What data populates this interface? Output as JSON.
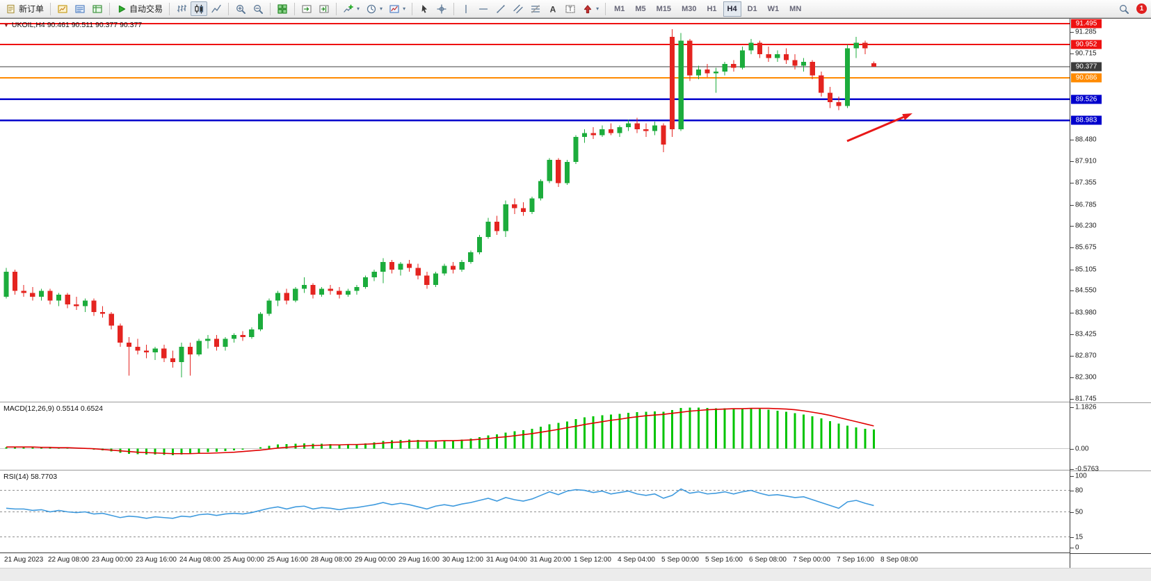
{
  "toolbar": {
    "groups": [
      [
        {
          "name": "new-order",
          "icon": "new-order",
          "label": "新订单"
        }
      ],
      [
        {
          "name": "market-watch",
          "icon": "market-watch"
        },
        {
          "name": "data-window",
          "icon": "data-window"
        },
        {
          "name": "navigator",
          "icon": "navigator"
        }
      ],
      [
        {
          "name": "auto-trading",
          "icon": "auto-trading",
          "label": "自动交易"
        }
      ],
      [
        {
          "name": "bar-chart-mode",
          "icon": "bars"
        },
        {
          "name": "candlestick-mode",
          "icon": "candles",
          "active": true
        },
        {
          "name": "line-chart-mode",
          "icon": "polyline"
        }
      ],
      [
        {
          "name": "zoom-in",
          "icon": "zoom-in"
        },
        {
          "name": "zoom-out",
          "icon": "zoom-out"
        }
      ],
      [
        {
          "name": "tile-windows",
          "icon": "grid"
        }
      ],
      [
        {
          "name": "auto-scroll",
          "icon": "auto-scroll"
        },
        {
          "name": "chart-shift",
          "icon": "chart-shift"
        }
      ],
      [
        {
          "name": "indicators-list",
          "icon": "indicator-plus",
          "caret": true
        },
        {
          "name": "periods",
          "icon": "clock",
          "caret": true
        },
        {
          "name": "templates",
          "icon": "template",
          "caret": true
        }
      ],
      [
        {
          "name": "cursor",
          "icon": "cursor"
        },
        {
          "name": "crosshair",
          "icon": "crosshair"
        }
      ],
      [
        {
          "name": "vertical-line",
          "icon": "vline"
        },
        {
          "name": "horizontal-line",
          "icon": "hline"
        },
        {
          "name": "trendline",
          "icon": "tline"
        },
        {
          "name": "channel",
          "icon": "channel"
        },
        {
          "name": "fibonacci",
          "icon": "fibo"
        },
        {
          "name": "text",
          "icon": "letterA"
        },
        {
          "name": "text-label",
          "icon": "labelT"
        },
        {
          "name": "arrow-objects",
          "icon": "arrows",
          "caret": true
        }
      ]
    ],
    "timeframes": [
      "M1",
      "M5",
      "M15",
      "M30",
      "H1",
      "H4",
      "D1",
      "W1",
      "MN"
    ],
    "active_timeframe": "H4",
    "notification_count": "1"
  },
  "chart": {
    "symbol_info": "UKOIL,H4  90.461 90.511 90.377 90.377"
  },
  "indicators": {
    "macd_label": "MACD(12,26,9) 0.5514 0.6524",
    "rsi_label": "RSI(14) 58.7703"
  },
  "price_scale": {
    "regular": [
      "91.285",
      "90.715",
      "88.480",
      "87.910",
      "87.355",
      "86.785",
      "86.230",
      "85.675",
      "85.105",
      "84.550",
      "83.980",
      "83.425",
      "82.870",
      "82.300",
      "81.745"
    ],
    "line_labels": [
      {
        "text": "91.495",
        "bg": "#ee1111"
      },
      {
        "text": "90.952",
        "bg": "#ee1111"
      },
      {
        "text": "90.377",
        "bg": "#3c3c3c"
      },
      {
        "text": "90.086",
        "bg": "#ff8a00"
      },
      {
        "text": "89.526",
        "bg": "#0000cc"
      },
      {
        "text": "88.983",
        "bg": "#0000cc"
      }
    ],
    "macd_scale": [
      "1.1826",
      "0.00",
      "-0.5763"
    ],
    "rsi_scale": [
      "100",
      "80",
      "50",
      "15",
      "0"
    ]
  },
  "chart_data": [
    {
      "type": "candlestick",
      "symbol": "UKOIL",
      "timeframe": "H4",
      "ylim": [
        81.651,
        91.621
      ],
      "up_color": "#1cac3c",
      "down_color": "#e42420",
      "hlines": [
        {
          "price": 91.495,
          "color": "#ee1111",
          "width": 2
        },
        {
          "price": 90.952,
          "color": "#ee1111",
          "width": 2
        },
        {
          "price": 90.377,
          "color": "#3c3c3c",
          "width": 1
        },
        {
          "price": 90.086,
          "color": "#ff8a00",
          "width": 2
        },
        {
          "price": 89.526,
          "color": "#0000cc",
          "width": 2.5
        },
        {
          "price": 88.983,
          "color": "#0000cc",
          "width": 2.5
        }
      ],
      "arrow": {
        "from": [
          1218,
          176
        ],
        "to": [
          1312,
          136
        ],
        "color": "#e81818"
      },
      "x_labels": [
        "21 Aug 2023",
        "22 Aug 08:00",
        "23 Aug 00:00",
        "23 Aug 16:00",
        "24 Aug 08:00",
        "25 Aug 00:00",
        "25 Aug 16:00",
        "28 Aug 08:00",
        "29 Aug 00:00",
        "29 Aug 16:00",
        "30 Aug 12:00",
        "31 Aug 04:00",
        "31 Aug 20:00",
        "1 Sep 12:00",
        "4 Sep 04:00",
        "5 Sep 00:00",
        "5 Sep 16:00",
        "6 Sep 08:00",
        "7 Sep 00:00",
        "7 Sep 16:00",
        "8 Sep 08:00"
      ],
      "ohlc": [
        [
          84.4,
          85.15,
          84.35,
          85.05
        ],
        [
          85.05,
          85.1,
          84.45,
          84.55
        ],
        [
          84.55,
          84.7,
          84.4,
          84.5
        ],
        [
          84.5,
          84.65,
          84.3,
          84.4
        ],
        [
          84.4,
          84.6,
          84.3,
          84.55
        ],
        [
          84.55,
          84.6,
          84.2,
          84.3
        ],
        [
          84.3,
          84.5,
          84.15,
          84.45
        ],
        [
          84.45,
          84.5,
          84.1,
          84.2
        ],
        [
          84.2,
          84.4,
          84.05,
          84.15
        ],
        [
          84.15,
          84.35,
          84.0,
          84.3
        ],
        [
          84.3,
          84.35,
          83.9,
          84.0
        ],
        [
          84.0,
          84.15,
          83.85,
          83.95
        ],
        [
          83.95,
          84.0,
          83.55,
          83.65
        ],
        [
          83.65,
          83.7,
          83.1,
          83.2
        ],
        [
          83.2,
          83.35,
          82.35,
          83.1
        ],
        [
          83.1,
          83.3,
          82.9,
          83.0
        ],
        [
          83.0,
          83.15,
          82.8,
          82.95
        ],
        [
          82.95,
          83.1,
          82.75,
          83.05
        ],
        [
          83.05,
          83.15,
          82.7,
          82.8
        ],
        [
          82.8,
          83.0,
          82.55,
          82.7
        ],
        [
          82.7,
          83.2,
          82.3,
          83.1
        ],
        [
          83.1,
          83.2,
          82.35,
          82.9
        ],
        [
          82.9,
          83.3,
          82.85,
          83.25
        ],
        [
          83.25,
          83.4,
          83.05,
          83.3
        ],
        [
          83.3,
          83.4,
          83.0,
          83.1
        ],
        [
          83.1,
          83.35,
          83.0,
          83.3
        ],
        [
          83.3,
          83.45,
          83.2,
          83.4
        ],
        [
          83.4,
          83.5,
          83.25,
          83.35
        ],
        [
          83.35,
          83.6,
          83.3,
          83.55
        ],
        [
          83.55,
          84.0,
          83.5,
          83.95
        ],
        [
          83.95,
          84.35,
          83.9,
          84.3
        ],
        [
          84.3,
          84.55,
          84.15,
          84.5
        ],
        [
          84.5,
          84.6,
          84.2,
          84.3
        ],
        [
          84.3,
          84.65,
          84.25,
          84.6
        ],
        [
          84.6,
          84.9,
          84.5,
          84.7
        ],
        [
          84.7,
          84.75,
          84.35,
          84.45
        ],
        [
          84.45,
          84.65,
          84.4,
          84.6
        ],
        [
          84.6,
          84.7,
          84.45,
          84.55
        ],
        [
          84.55,
          84.65,
          84.35,
          84.45
        ],
        [
          84.45,
          84.6,
          84.4,
          84.55
        ],
        [
          84.55,
          84.7,
          84.45,
          84.65
        ],
        [
          84.65,
          84.95,
          84.6,
          84.9
        ],
        [
          84.9,
          85.1,
          84.8,
          85.05
        ],
        [
          85.05,
          85.4,
          84.75,
          85.3
        ],
        [
          85.3,
          85.35,
          85.0,
          85.1
        ],
        [
          85.1,
          85.3,
          84.95,
          85.25
        ],
        [
          85.25,
          85.35,
          85.05,
          85.15
        ],
        [
          85.15,
          85.25,
          84.85,
          84.95
        ],
        [
          84.95,
          85.05,
          84.6,
          84.7
        ],
        [
          84.7,
          85.05,
          84.65,
          85.0
        ],
        [
          85.0,
          85.25,
          84.95,
          85.2
        ],
        [
          85.2,
          85.3,
          85.0,
          85.1
        ],
        [
          85.1,
          85.35,
          85.05,
          85.3
        ],
        [
          85.3,
          85.6,
          85.25,
          85.55
        ],
        [
          85.55,
          86.0,
          85.5,
          85.95
        ],
        [
          85.95,
          86.45,
          85.9,
          86.35
        ],
        [
          86.35,
          86.5,
          86.0,
          86.1
        ],
        [
          86.1,
          86.9,
          85.95,
          86.8
        ],
        [
          86.8,
          86.95,
          86.55,
          86.7
        ],
        [
          86.7,
          86.85,
          86.5,
          86.6
        ],
        [
          86.6,
          87.0,
          86.55,
          86.95
        ],
        [
          86.95,
          87.45,
          86.9,
          87.4
        ],
        [
          87.4,
          88.0,
          87.35,
          87.95
        ],
        [
          87.95,
          88.0,
          87.25,
          87.35
        ],
        [
          87.35,
          87.95,
          87.3,
          87.9
        ],
        [
          87.9,
          88.6,
          87.85,
          88.55
        ],
        [
          88.55,
          88.75,
          88.4,
          88.65
        ],
        [
          88.65,
          88.8,
          88.5,
          88.6
        ],
        [
          88.6,
          88.85,
          88.55,
          88.75
        ],
        [
          88.75,
          88.9,
          88.6,
          88.65
        ],
        [
          88.65,
          88.85,
          88.55,
          88.8
        ],
        [
          88.8,
          89.0,
          88.7,
          88.9
        ],
        [
          88.9,
          89.05,
          88.65,
          88.75
        ],
        [
          88.75,
          88.9,
          88.55,
          88.7
        ],
        [
          88.7,
          88.95,
          88.6,
          88.85
        ],
        [
          88.85,
          88.9,
          88.15,
          88.35
        ],
        [
          91.15,
          91.35,
          88.55,
          88.75
        ],
        [
          88.75,
          91.25,
          88.7,
          91.05
        ],
        [
          91.05,
          91.1,
          90.0,
          90.15
        ],
        [
          90.15,
          90.4,
          90.05,
          90.3
        ],
        [
          90.3,
          90.45,
          90.1,
          90.2
        ],
        [
          90.2,
          90.35,
          89.7,
          90.25
        ],
        [
          90.25,
          90.5,
          90.15,
          90.45
        ],
        [
          90.45,
          90.55,
          90.25,
          90.35
        ],
        [
          90.35,
          90.9,
          90.3,
          90.8
        ],
        [
          90.8,
          91.1,
          90.7,
          91.0
        ],
        [
          91.0,
          91.05,
          90.6,
          90.7
        ],
        [
          90.7,
          90.9,
          90.5,
          90.6
        ],
        [
          90.6,
          90.8,
          90.5,
          90.7
        ],
        [
          90.7,
          90.85,
          90.45,
          90.55
        ],
        [
          90.55,
          90.7,
          90.3,
          90.4
        ],
        [
          90.4,
          90.6,
          90.25,
          90.5
        ],
        [
          90.5,
          90.55,
          90.05,
          90.15
        ],
        [
          90.15,
          90.25,
          89.6,
          89.7
        ],
        [
          89.7,
          89.85,
          89.3,
          89.45
        ],
        [
          89.45,
          89.6,
          89.25,
          89.35
        ],
        [
          89.35,
          90.95,
          89.3,
          90.85
        ],
        [
          90.85,
          91.15,
          90.6,
          91.0
        ],
        [
          91.0,
          91.05,
          90.7,
          90.85
        ],
        [
          90.461,
          90.511,
          90.377,
          90.377
        ]
      ]
    },
    {
      "type": "bar",
      "name": "MACD(12,26,9)",
      "current_values": [
        0.5514,
        0.6524
      ],
      "ylim": [
        -0.62,
        1.32
      ],
      "bar_color": "#00c400",
      "signal_color": "#e00000",
      "values": [
        0.04,
        0.05,
        0.05,
        0.04,
        0.03,
        0.02,
        0.02,
        0.01,
        0.0,
        -0.01,
        -0.03,
        -0.05,
        -0.08,
        -0.12,
        -0.14,
        -0.15,
        -0.16,
        -0.16,
        -0.17,
        -0.18,
        -0.16,
        -0.15,
        -0.12,
        -0.1,
        -0.09,
        -0.07,
        -0.05,
        -0.03,
        0.0,
        0.04,
        0.08,
        0.12,
        0.13,
        0.14,
        0.15,
        0.14,
        0.14,
        0.13,
        0.12,
        0.12,
        0.13,
        0.15,
        0.18,
        0.22,
        0.24,
        0.25,
        0.26,
        0.25,
        0.23,
        0.22,
        0.23,
        0.24,
        0.26,
        0.29,
        0.33,
        0.38,
        0.41,
        0.46,
        0.5,
        0.53,
        0.57,
        0.63,
        0.7,
        0.74,
        0.78,
        0.84,
        0.89,
        0.92,
        0.95,
        0.97,
        0.99,
        1.02,
        1.04,
        1.05,
        1.06,
        1.05,
        1.1,
        1.16,
        1.17,
        1.17,
        1.16,
        1.15,
        1.15,
        1.14,
        1.14,
        1.15,
        1.13,
        1.11,
        1.08,
        1.05,
        1.01,
        0.97,
        0.92,
        0.86,
        0.79,
        0.72,
        0.66,
        0.61,
        0.57,
        0.55
      ],
      "signal": [
        0.05,
        0.05,
        0.05,
        0.05,
        0.04,
        0.04,
        0.03,
        0.03,
        0.02,
        0.01,
        0.0,
        -0.02,
        -0.04,
        -0.06,
        -0.08,
        -0.1,
        -0.11,
        -0.12,
        -0.13,
        -0.14,
        -0.14,
        -0.14,
        -0.13,
        -0.13,
        -0.12,
        -0.11,
        -0.1,
        -0.08,
        -0.06,
        -0.04,
        -0.01,
        0.02,
        0.04,
        0.06,
        0.08,
        0.09,
        0.1,
        0.11,
        0.11,
        0.12,
        0.12,
        0.13,
        0.14,
        0.16,
        0.18,
        0.19,
        0.21,
        0.22,
        0.22,
        0.22,
        0.23,
        0.23,
        0.24,
        0.25,
        0.27,
        0.29,
        0.32,
        0.34,
        0.37,
        0.4,
        0.43,
        0.47,
        0.51,
        0.55,
        0.6,
        0.64,
        0.69,
        0.73,
        0.77,
        0.81,
        0.84,
        0.88,
        0.91,
        0.94,
        0.96,
        0.98,
        1.01,
        1.04,
        1.07,
        1.09,
        1.11,
        1.12,
        1.13,
        1.14,
        1.14,
        1.15,
        1.15,
        1.15,
        1.14,
        1.13,
        1.11,
        1.08,
        1.04,
        1.0,
        0.95,
        0.89,
        0.83,
        0.77,
        0.71,
        0.65
      ]
    },
    {
      "type": "line",
      "name": "RSI(14)",
      "current": 58.7703,
      "ylim": [
        0,
        100
      ],
      "levels": [
        80,
        50,
        15
      ],
      "line_color": "#3e9ade",
      "values": [
        55,
        54,
        54,
        52,
        53,
        50,
        52,
        50,
        49,
        50,
        47,
        48,
        45,
        42,
        44,
        43,
        41,
        43,
        42,
        41,
        44,
        43,
        46,
        47,
        45,
        47,
        48,
        47,
        49,
        52,
        55,
        57,
        54,
        57,
        58,
        54,
        56,
        55,
        53,
        55,
        56,
        58,
        60,
        63,
        60,
        62,
        60,
        57,
        54,
        58,
        60,
        58,
        61,
        63,
        66,
        69,
        65,
        70,
        67,
        65,
        68,
        73,
        78,
        74,
        79,
        81,
        80,
        77,
        79,
        75,
        77,
        79,
        75,
        73,
        75,
        69,
        73,
        82,
        76,
        78,
        75,
        76,
        78,
        75,
        78,
        80,
        76,
        73,
        74,
        72,
        70,
        71,
        67,
        63,
        59,
        55,
        64,
        66,
        62,
        58.8
      ]
    }
  ]
}
